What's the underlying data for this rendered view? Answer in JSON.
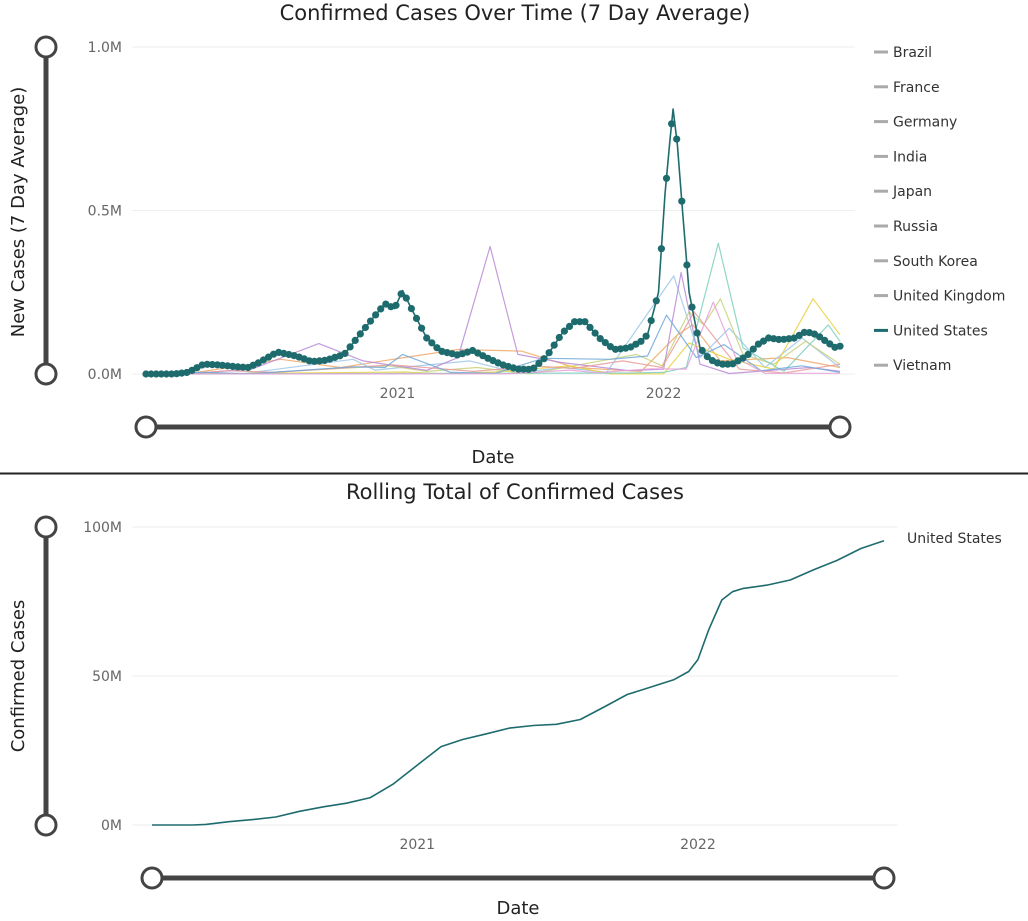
{
  "chart_data": [
    {
      "type": "line",
      "title": "Confirmed Cases Over Time (7 Day Average)",
      "xlabel": "Date",
      "ylabel": "New Cases (7 Day Average)",
      "xlim": [
        "2020-01-22",
        "2022-08-31"
      ],
      "ylim": [
        0,
        1000000
      ],
      "y_ticks": [
        {
          "v": 0,
          "label": "0.0M"
        },
        {
          "v": 500000,
          "label": "0.5M"
        },
        {
          "v": 1000000,
          "label": "1.0M"
        }
      ],
      "x_ticks": [
        {
          "v": "2021-01-01",
          "label": "2021"
        },
        {
          "v": "2022-01-01",
          "label": "2022"
        }
      ],
      "legend_position": "right",
      "highlighted_series": "United States",
      "series": [
        {
          "name": "Brazil",
          "color": "#f0a868",
          "points": [
            [
              "2020-03-15",
              0
            ],
            [
              "2020-06-01",
              25000
            ],
            [
              "2020-07-25",
              45000
            ],
            [
              "2020-10-15",
              20000
            ],
            [
              "2021-01-10",
              50000
            ],
            [
              "2021-03-25",
              75000
            ],
            [
              "2021-06-20",
              70000
            ],
            [
              "2021-09-01",
              20000
            ],
            [
              "2021-12-01",
              8000
            ],
            [
              "2022-01-20",
              120000
            ],
            [
              "2022-02-10",
              150000
            ],
            [
              "2022-03-20",
              40000
            ],
            [
              "2022-06-20",
              50000
            ],
            [
              "2022-08-31",
              20000
            ]
          ]
        },
        {
          "name": "France",
          "color": "#9dc7e8",
          "points": [
            [
              "2020-03-01",
              0
            ],
            [
              "2020-04-01",
              5000
            ],
            [
              "2020-06-01",
              500
            ],
            [
              "2020-11-01",
              45000
            ],
            [
              "2020-12-01",
              12000
            ],
            [
              "2021-04-10",
              40000
            ],
            [
              "2021-06-15",
              3000
            ],
            [
              "2021-08-15",
              20000
            ],
            [
              "2021-10-15",
              5000
            ],
            [
              "2022-01-15",
              300000
            ],
            [
              "2022-02-20",
              50000
            ],
            [
              "2022-04-01",
              140000
            ],
            [
              "2022-05-20",
              20000
            ],
            [
              "2022-07-10",
              110000
            ],
            [
              "2022-08-31",
              20000
            ]
          ]
        },
        {
          "name": "Germany",
          "color": "#c8d17a",
          "points": [
            [
              "2020-03-01",
              0
            ],
            [
              "2020-04-01",
              5000
            ],
            [
              "2020-06-01",
              300
            ],
            [
              "2020-12-20",
              25000
            ],
            [
              "2021-02-10",
              8000
            ],
            [
              "2021-04-20",
              20000
            ],
            [
              "2021-07-01",
              600
            ],
            [
              "2021-11-25",
              60000
            ],
            [
              "2021-12-30",
              25000
            ],
            [
              "2022-02-05",
              190000
            ],
            [
              "2022-02-25",
              150000
            ],
            [
              "2022-03-20",
              230000
            ],
            [
              "2022-04-20",
              60000
            ],
            [
              "2022-06-01",
              30000
            ],
            [
              "2022-07-15",
              100000
            ],
            [
              "2022-08-31",
              30000
            ]
          ]
        },
        {
          "name": "India",
          "color": "#b98ad6",
          "points": [
            [
              "2020-03-15",
              0
            ],
            [
              "2020-06-15",
              15000
            ],
            [
              "2020-09-15",
              93000
            ],
            [
              "2020-11-15",
              40000
            ],
            [
              "2021-02-10",
              11000
            ],
            [
              "2021-03-25",
              50000
            ],
            [
              "2021-05-08",
              390000
            ],
            [
              "2021-06-15",
              60000
            ],
            [
              "2021-08-15",
              35000
            ],
            [
              "2021-11-15",
              10000
            ],
            [
              "2022-01-01",
              15000
            ],
            [
              "2022-01-25",
              310000
            ],
            [
              "2022-02-20",
              30000
            ],
            [
              "2022-04-01",
              1500
            ],
            [
              "2022-07-20",
              20000
            ],
            [
              "2022-08-31",
              8000
            ]
          ]
        },
        {
          "name": "Japan",
          "color": "#e8d040",
          "points": [
            [
              "2020-03-01",
              0
            ],
            [
              "2021-01-12",
              6000
            ],
            [
              "2021-03-01",
              1000
            ],
            [
              "2021-05-15",
              6000
            ],
            [
              "2021-08-25",
              25000
            ],
            [
              "2021-10-20",
              200
            ],
            [
              "2022-01-01",
              500
            ],
            [
              "2022-02-05",
              95000
            ],
            [
              "2022-04-01",
              45000
            ],
            [
              "2022-06-01",
              15000
            ],
            [
              "2022-07-25",
              230000
            ],
            [
              "2022-08-31",
              120000
            ]
          ]
        },
        {
          "name": "Russia",
          "color": "#e89a9a",
          "points": [
            [
              "2020-03-15",
              0
            ],
            [
              "2020-05-15",
              10000
            ],
            [
              "2020-07-15",
              5000
            ],
            [
              "2020-12-24",
              28000
            ],
            [
              "2021-04-15",
              8000
            ],
            [
              "2021-07-10",
              24000
            ],
            [
              "2021-08-31",
              17000
            ],
            [
              "2021-11-06",
              40000
            ],
            [
              "2021-12-30",
              20000
            ],
            [
              "2022-02-12",
              190000
            ],
            [
              "2022-04-15",
              15000
            ],
            [
              "2022-06-15",
              3000
            ],
            [
              "2022-08-31",
              30000
            ]
          ]
        },
        {
          "name": "South Korea",
          "color": "#7ecfc0",
          "points": [
            [
              "2020-02-15",
              0
            ],
            [
              "2021-11-15",
              3000
            ],
            [
              "2022-01-01",
              5000
            ],
            [
              "2022-02-01",
              20000
            ],
            [
              "2022-03-17",
              400000
            ],
            [
              "2022-04-20",
              80000
            ],
            [
              "2022-06-15",
              8000
            ],
            [
              "2022-08-15",
              150000
            ],
            [
              "2022-08-31",
              100000
            ]
          ]
        },
        {
          "name": "United Kingdom",
          "color": "#6fa8dc",
          "points": [
            [
              "2020-03-01",
              0
            ],
            [
              "2020-04-10",
              5000
            ],
            [
              "2020-06-15",
              500
            ],
            [
              "2020-11-01",
              22000
            ],
            [
              "2020-12-15",
              20000
            ],
            [
              "2021-01-08",
              60000
            ],
            [
              "2021-03-15",
              5000
            ],
            [
              "2021-05-15",
              2000
            ],
            [
              "2021-07-20",
              48000
            ],
            [
              "2021-10-20",
              45000
            ],
            [
              "2021-12-10",
              55000
            ],
            [
              "2022-01-05",
              180000
            ],
            [
              "2022-02-15",
              50000
            ],
            [
              "2022-03-25",
              90000
            ],
            [
              "2022-05-15",
              10000
            ],
            [
              "2022-07-10",
              25000
            ],
            [
              "2022-08-31",
              5000
            ]
          ]
        },
        {
          "name": "Vietnam",
          "color": "#e8a0d8",
          "points": [
            [
              "2020-03-01",
              0
            ],
            [
              "2021-06-01",
              500
            ],
            [
              "2021-08-25",
              12000
            ],
            [
              "2021-10-01",
              4000
            ],
            [
              "2021-12-15",
              16000
            ],
            [
              "2022-02-01",
              15000
            ],
            [
              "2022-03-10",
              220000
            ],
            [
              "2022-04-10",
              50000
            ],
            [
              "2022-05-20",
              2000
            ],
            [
              "2022-08-31",
              2000
            ]
          ]
        },
        {
          "name": "United States",
          "color": "#1e6b6e",
          "points": [
            [
              "2020-01-22",
              0
            ],
            [
              "2020-03-01",
              0
            ],
            [
              "2020-03-20",
              5000
            ],
            [
              "2020-04-10",
              30000
            ],
            [
              "2020-05-01",
              28000
            ],
            [
              "2020-05-25",
              22000
            ],
            [
              "2020-06-10",
              20000
            ],
            [
              "2020-06-25",
              35000
            ],
            [
              "2020-07-20",
              67000
            ],
            [
              "2020-08-15",
              55000
            ],
            [
              "2020-09-05",
              38000
            ],
            [
              "2020-09-25",
              42000
            ],
            [
              "2020-10-20",
              60000
            ],
            [
              "2020-11-10",
              120000
            ],
            [
              "2020-11-28",
              170000
            ],
            [
              "2020-12-15",
              215000
            ],
            [
              "2020-12-28",
              200000
            ],
            [
              "2021-01-08",
              255000
            ],
            [
              "2021-01-20",
              200000
            ],
            [
              "2021-02-10",
              110000
            ],
            [
              "2021-03-01",
              70000
            ],
            [
              "2021-03-25",
              58000
            ],
            [
              "2021-04-14",
              72000
            ],
            [
              "2021-05-05",
              48000
            ],
            [
              "2021-05-25",
              28000
            ],
            [
              "2021-06-15",
              15000
            ],
            [
              "2021-07-05",
              14000
            ],
            [
              "2021-07-25",
              55000
            ],
            [
              "2021-08-15",
              125000
            ],
            [
              "2021-09-01",
              160000
            ],
            [
              "2021-09-15",
              160000
            ],
            [
              "2021-10-05",
              110000
            ],
            [
              "2021-10-25",
              75000
            ],
            [
              "2021-11-15",
              80000
            ],
            [
              "2021-12-01",
              100000
            ],
            [
              "2021-12-10",
              120000
            ],
            [
              "2021-12-25",
              250000
            ],
            [
              "2022-01-03",
              550000
            ],
            [
              "2022-01-10",
              720000
            ],
            [
              "2022-01-14",
              810000
            ],
            [
              "2022-01-20",
              700000
            ],
            [
              "2022-01-27",
              500000
            ],
            [
              "2022-02-05",
              250000
            ],
            [
              "2022-02-20",
              80000
            ],
            [
              "2022-03-05",
              45000
            ],
            [
              "2022-03-20",
              30000
            ],
            [
              "2022-04-05",
              30000
            ],
            [
              "2022-04-25",
              55000
            ],
            [
              "2022-05-10",
              90000
            ],
            [
              "2022-05-25",
              110000
            ],
            [
              "2022-06-10",
              105000
            ],
            [
              "2022-06-30",
              110000
            ],
            [
              "2022-07-15",
              130000
            ],
            [
              "2022-07-30",
              120000
            ],
            [
              "2022-08-15",
              95000
            ],
            [
              "2022-08-25",
              80000
            ],
            [
              "2022-08-31",
              85000
            ]
          ]
        }
      ]
    },
    {
      "type": "line",
      "title": "Rolling Total of Confirmed Cases",
      "xlabel": "Date",
      "ylabel": "Confirmed Cases",
      "xlim": [
        "2020-01-22",
        "2022-08-31"
      ],
      "ylim": [
        0,
        100000000
      ],
      "y_ticks": [
        {
          "v": 0,
          "label": "0M"
        },
        {
          "v": 50000000,
          "label": "50M"
        },
        {
          "v": 100000000,
          "label": "100M"
        }
      ],
      "x_ticks": [
        {
          "v": "2021-01-01",
          "label": "2021"
        },
        {
          "v": "2022-01-01",
          "label": "2022"
        }
      ],
      "series": [
        {
          "name": "United States",
          "color": "#1e6b6e",
          "points": [
            [
              "2020-01-22",
              0
            ],
            [
              "2020-03-15",
              0
            ],
            [
              "2020-04-01",
              200000
            ],
            [
              "2020-05-01",
              1100000
            ],
            [
              "2020-06-01",
              1800000
            ],
            [
              "2020-07-01",
              2700000
            ],
            [
              "2020-08-01",
              4600000
            ],
            [
              "2020-09-01",
              6100000
            ],
            [
              "2020-10-01",
              7300000
            ],
            [
              "2020-11-01",
              9200000
            ],
            [
              "2020-12-01",
              13800000
            ],
            [
              "2021-01-01",
              20100000
            ],
            [
              "2021-02-01",
              26300000
            ],
            [
              "2021-03-01",
              28700000
            ],
            [
              "2021-04-01",
              30600000
            ],
            [
              "2021-05-01",
              32500000
            ],
            [
              "2021-06-01",
              33400000
            ],
            [
              "2021-07-01",
              33800000
            ],
            [
              "2021-08-01",
              35400000
            ],
            [
              "2021-09-01",
              39600000
            ],
            [
              "2021-10-01",
              43800000
            ],
            [
              "2021-11-01",
              46300000
            ],
            [
              "2021-12-01",
              48800000
            ],
            [
              "2021-12-20",
              51500000
            ],
            [
              "2022-01-01",
              55500000
            ],
            [
              "2022-01-15",
              65500000
            ],
            [
              "2022-02-01",
              75500000
            ],
            [
              "2022-02-15",
              78300000
            ],
            [
              "2022-03-01",
              79400000
            ],
            [
              "2022-04-01",
              80500000
            ],
            [
              "2022-05-01",
              82200000
            ],
            [
              "2022-06-01",
              85700000
            ],
            [
              "2022-07-01",
              88800000
            ],
            [
              "2022-08-01",
              92800000
            ],
            [
              "2022-08-31",
              95400000
            ]
          ]
        }
      ]
    }
  ]
}
